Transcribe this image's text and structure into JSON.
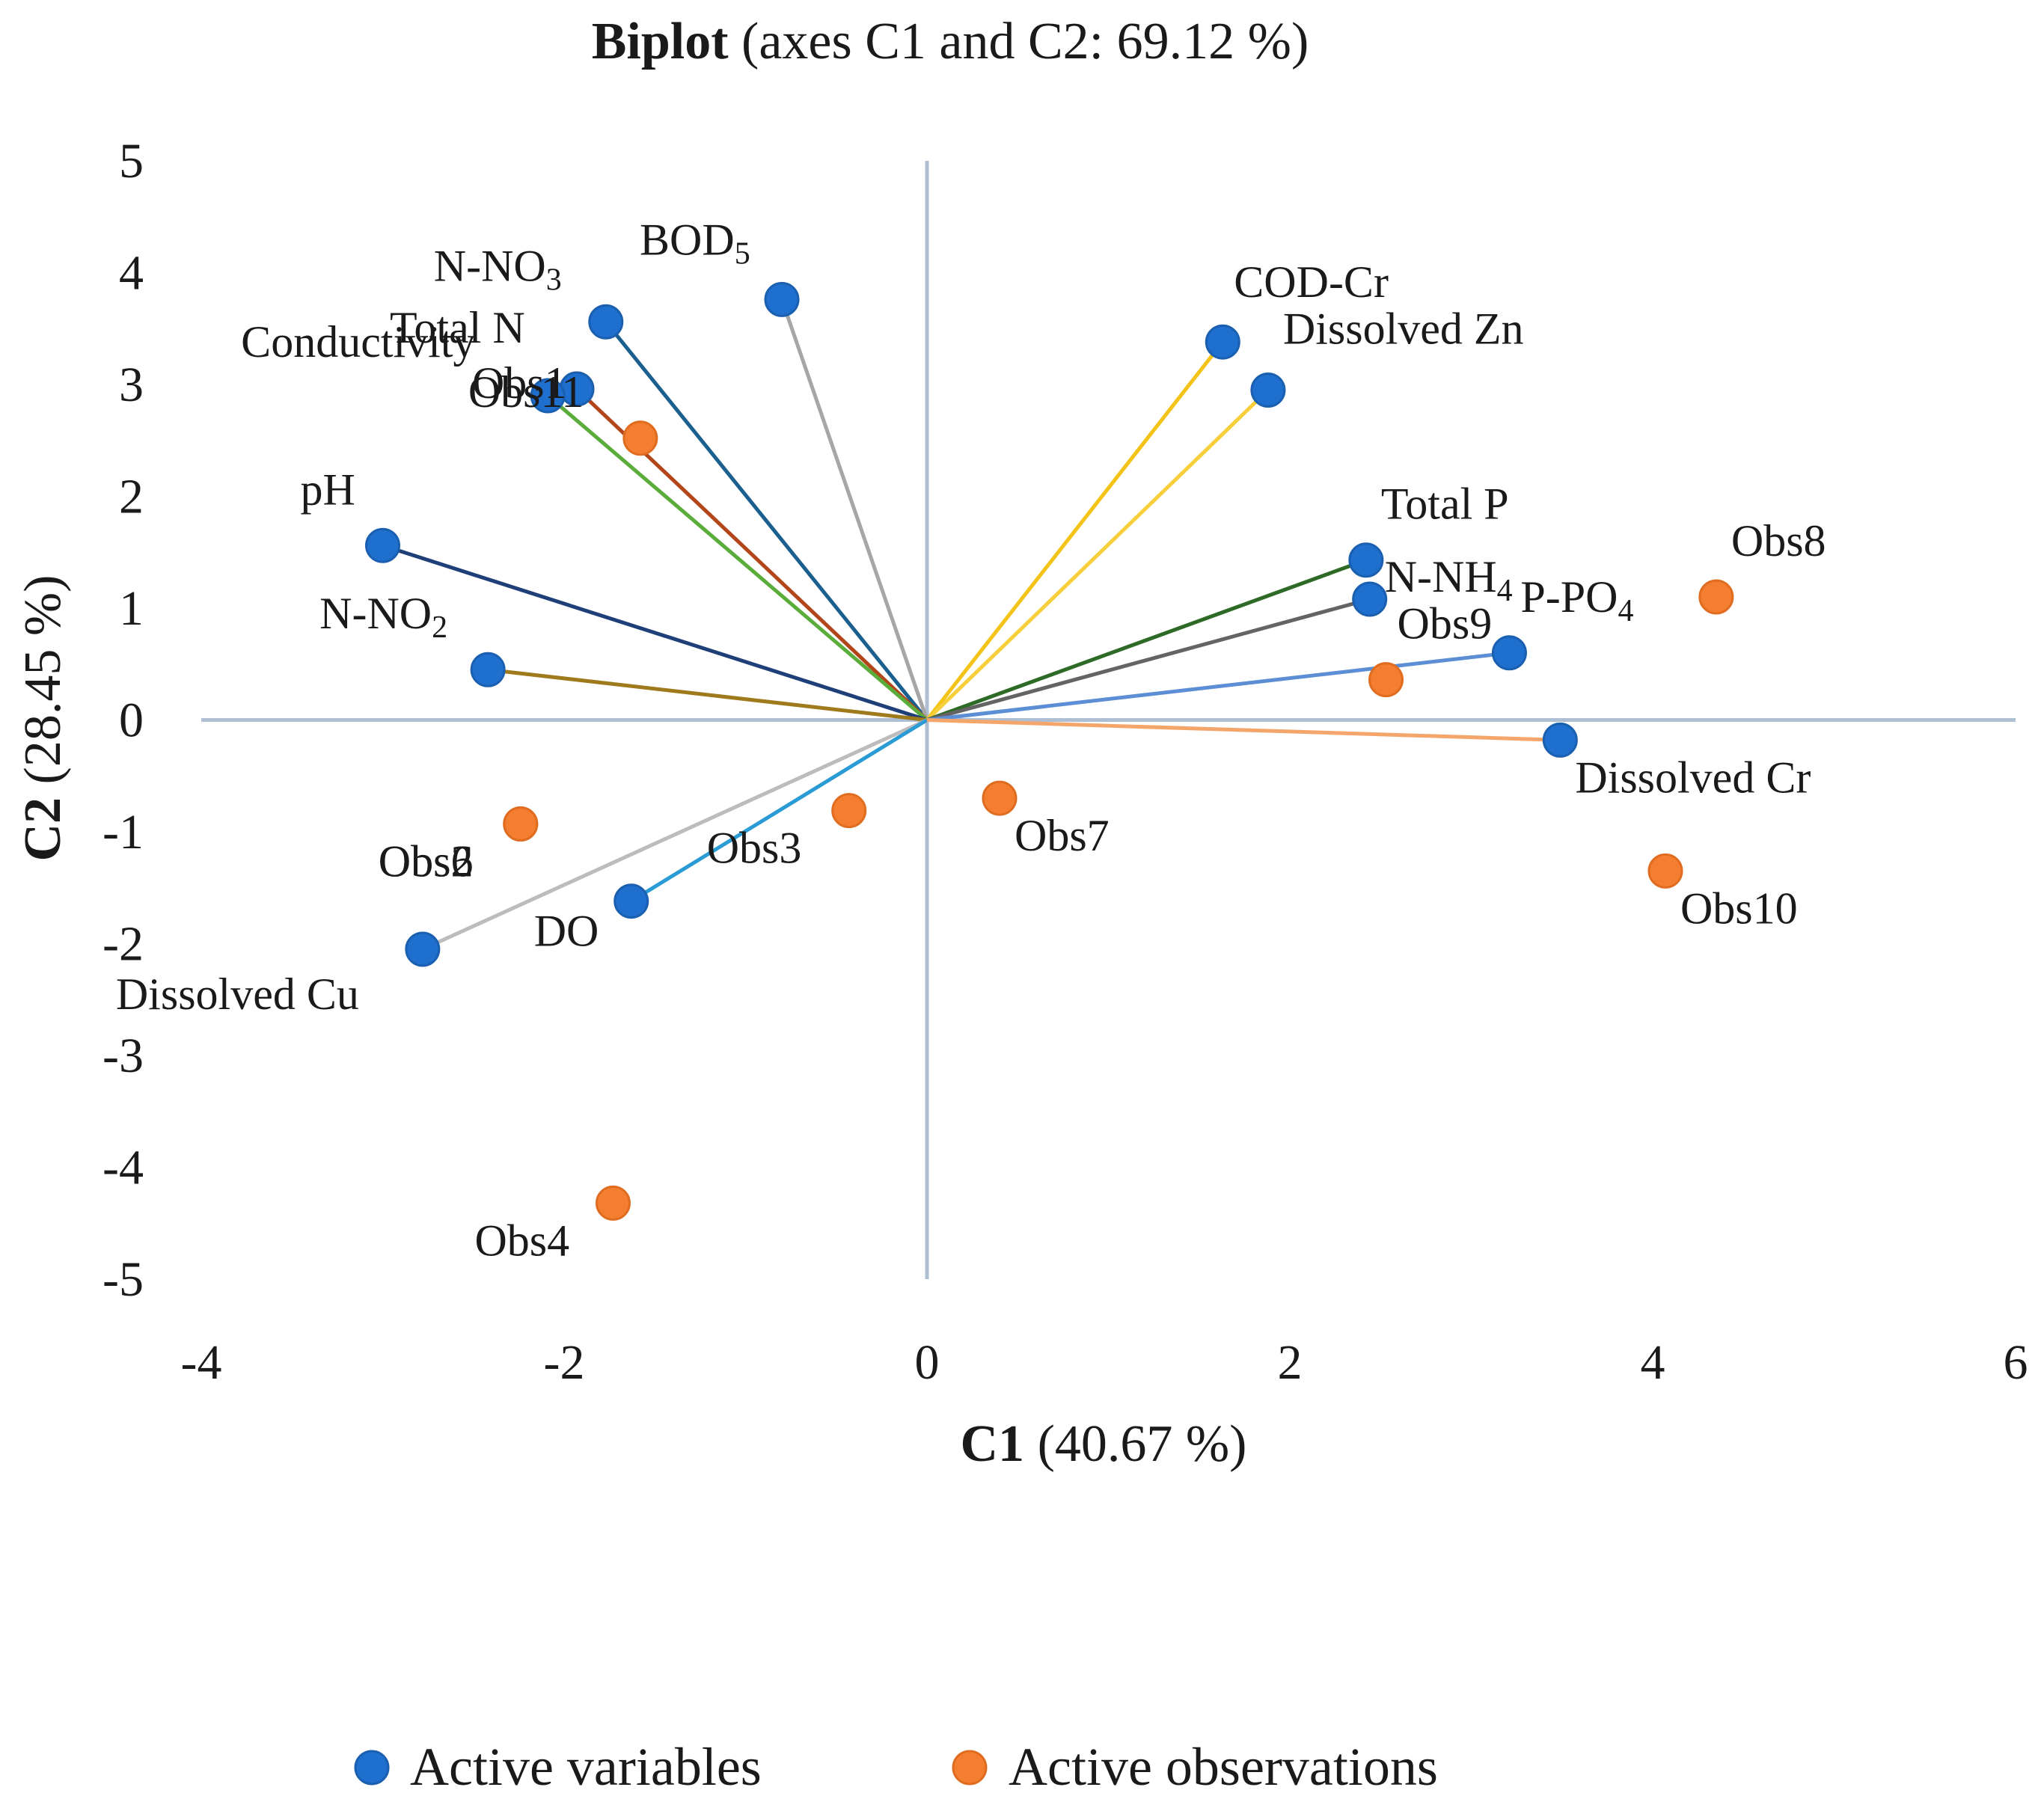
{
  "chart_data": {
    "type": "scatter",
    "title": {
      "bold": "Biplot",
      "rest": " (axes C1 and C2: 69.12 %)"
    },
    "xlabel": {
      "bold": "C1",
      "rest": " (40.67 %)"
    },
    "ylabel": {
      "bold": "C2",
      "rest": " (28.45 %)"
    },
    "xlim": [
      -4,
      6
    ],
    "ylim": [
      -5,
      5
    ],
    "xticks": [
      "-4",
      "-2",
      "0",
      "2",
      "4",
      "6"
    ],
    "yticks": [
      "5",
      "4",
      "3",
      "2",
      "1",
      "0",
      "-1",
      "-2",
      "-3",
      "-4",
      "-5"
    ],
    "colors": {
      "variables": "#1f6fcf",
      "observations": "#f47e30",
      "axis": "#aebfd3"
    },
    "legend": {
      "position": "bottom",
      "variables": "Active variables",
      "observations": "Active observations"
    },
    "variables": [
      {
        "name": "N-NO3",
        "text": "N-NO",
        "sub": "3",
        "x": -1.77,
        "y": 3.56,
        "color": "#1b5f8f"
      },
      {
        "name": "BOD5",
        "text": "BOD",
        "sub": "5",
        "x": -0.8,
        "y": 3.76,
        "color": "#a6a6a6"
      },
      {
        "name": "Total N",
        "text": "Total N",
        "sub": "",
        "x": -1.93,
        "y": 2.96,
        "color": "#b2461a"
      },
      {
        "name": "Conductivity",
        "text": "Conductivity",
        "sub": "",
        "x": -2.09,
        "y": 2.9,
        "color": "#5aad3a"
      },
      {
        "name": "pH",
        "text": "pH",
        "sub": "",
        "x": -3.0,
        "y": 1.56,
        "color": "#1e3f78"
      },
      {
        "name": "N-NO2",
        "text": "N-NO",
        "sub": "2",
        "x": -2.42,
        "y": 0.45,
        "color": "#9e7a1d"
      },
      {
        "name": "Dissolved Cu",
        "text": "Dissolved Cu",
        "sub": "",
        "x": -2.78,
        "y": -2.05,
        "color": "#bcbcbc"
      },
      {
        "name": "DO",
        "text": "DO",
        "sub": "",
        "x": -1.63,
        "y": -1.62,
        "color": "#2a9bd4"
      },
      {
        "name": "COD-Cr",
        "text": "COD-Cr",
        "sub": "",
        "x": 1.63,
        "y": 3.38,
        "color": "#f3c318"
      },
      {
        "name": "Dissolved Zn",
        "text": "Dissolved Zn",
        "sub": "",
        "x": 1.88,
        "y": 2.95,
        "color": "#f6cf3a"
      },
      {
        "name": "Total P",
        "text": "Total P",
        "sub": "",
        "x": 2.42,
        "y": 1.43,
        "color": "#2d6a26"
      },
      {
        "name": "N-NH4",
        "text": "N-NH",
        "sub": "4",
        "x": 2.44,
        "y": 1.08,
        "color": "#646464"
      },
      {
        "name": "P-PO4",
        "text": "P-PO",
        "sub": "4",
        "x": 3.21,
        "y": 0.6,
        "color": "#5b8ed4"
      },
      {
        "name": "Dissolved Cr",
        "text": "Dissolved Cr",
        "sub": "",
        "x": 3.49,
        "y": -0.18,
        "color": "#f4a56a"
      }
    ],
    "observations": [
      {
        "name": "Obs1",
        "x": -1.93,
        "y": 2.96
      },
      {
        "name": "Obs11",
        "x": -1.58,
        "y": 2.52
      },
      {
        "name": "Obs2",
        "x": -2.24,
        "y": -0.93
      },
      {
        "name": "Obs6",
        "x": -2.24,
        "y": -0.93
      },
      {
        "name": "Obs3",
        "x": -0.43,
        "y": -0.81
      },
      {
        "name": "Obs4",
        "x": -1.73,
        "y": -4.32
      },
      {
        "name": "Obs7",
        "x": 0.4,
        "y": -0.7
      },
      {
        "name": "Obs8",
        "x": 4.35,
        "y": 1.1
      },
      {
        "name": "Obs9",
        "x": 2.53,
        "y": 0.36
      },
      {
        "name": "Obs10",
        "x": 4.07,
        "y": -1.35
      }
    ]
  }
}
